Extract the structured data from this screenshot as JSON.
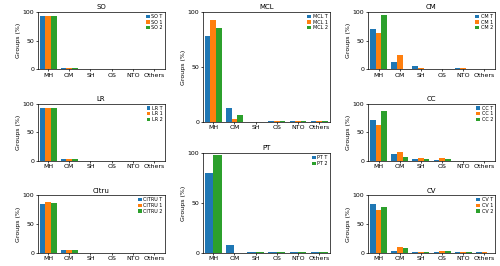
{
  "chart_data": [
    {
      "type": "bar",
      "title": "SO",
      "ylabel": "Groups (%)",
      "categories": [
        "MH",
        "OM",
        "SH",
        "OS",
        "NTO",
        "Others"
      ],
      "series": [
        {
          "name": "SO T",
          "color": "#1f77b4",
          "values": [
            93,
            2,
            0.3,
            0.3,
            0.3,
            0.3
          ]
        },
        {
          "name": "SO 1",
          "color": "#ff7f0e",
          "values": [
            93,
            2,
            0.3,
            0.3,
            0.3,
            0.3
          ]
        },
        {
          "name": "SO 2",
          "color": "#2ca02c",
          "values": [
            93,
            2,
            0.3,
            0.3,
            0.3,
            0.3
          ]
        }
      ],
      "ylim": [
        0,
        100
      ],
      "yticks": [
        0,
        50,
        100
      ],
      "grid": false,
      "legend": "upper right"
    },
    {
      "type": "bar",
      "title": "LR",
      "ylabel": "Groups (%)",
      "categories": [
        "MH",
        "OM",
        "SH",
        "OS",
        "NTO",
        "Others"
      ],
      "series": [
        {
          "name": "LR T",
          "color": "#1f77b4",
          "values": [
            93,
            3,
            0.3,
            0.3,
            0.3,
            0.3
          ]
        },
        {
          "name": "LR 1",
          "color": "#ff7f0e",
          "values": [
            93,
            3,
            0.3,
            0.3,
            0.3,
            0.3
          ]
        },
        {
          "name": "LR 2",
          "color": "#2ca02c",
          "values": [
            93,
            3,
            0.3,
            0.3,
            0.3,
            0.3
          ]
        }
      ],
      "ylim": [
        0,
        100
      ],
      "yticks": [
        0,
        50,
        100
      ],
      "grid": false,
      "legend": "upper right"
    },
    {
      "type": "bar",
      "title": "Citru",
      "ylabel": "Groups (%)",
      "categories": [
        "MH",
        "OM",
        "SH",
        "OS",
        "NTO",
        "Others"
      ],
      "series": [
        {
          "name": "CITRU T",
          "color": "#1f77b4",
          "values": [
            85,
            4,
            0.3,
            0.3,
            0.3,
            0.3
          ]
        },
        {
          "name": "CITRU 1",
          "color": "#ff7f0e",
          "values": [
            88,
            4,
            0.3,
            0.3,
            0.3,
            0.3
          ]
        },
        {
          "name": "CITRU 2",
          "color": "#2ca02c",
          "values": [
            87,
            4,
            0.3,
            0.3,
            0.3,
            0.3
          ]
        }
      ],
      "ylim": [
        0,
        100
      ],
      "yticks": [
        0,
        50,
        100
      ],
      "grid": false,
      "legend": "upper right"
    },
    {
      "type": "bar",
      "title": "MCL",
      "ylabel": "Groups (%)",
      "categories": [
        "MH",
        "OM",
        "SH",
        "OS",
        "NTO",
        "Others"
      ],
      "series": [
        {
          "name": "MCL T",
          "color": "#1f77b4",
          "values": [
            78,
            13,
            0.3,
            1,
            1,
            1
          ]
        },
        {
          "name": "MCL 1",
          "color": "#ff7f0e",
          "values": [
            93,
            3,
            0.3,
            1,
            1,
            1
          ]
        },
        {
          "name": "MCL 2",
          "color": "#2ca02c",
          "values": [
            85,
            6,
            0.3,
            1,
            1,
            1
          ]
        }
      ],
      "ylim": [
        0,
        100
      ],
      "yticks": [
        0,
        50,
        100
      ],
      "grid": false,
      "legend": "upper right"
    },
    {
      "type": "bar",
      "title": "PT",
      "ylabel": "Groups (%)",
      "categories": [
        "MH",
        "OM",
        "SH",
        "OS",
        "NTO",
        "Others"
      ],
      "series": [
        {
          "name": "PT T",
          "color": "#1f77b4",
          "values": [
            80,
            8,
            0.3,
            0.3,
            0.5,
            0.3
          ]
        },
        {
          "name": "PT 2",
          "color": "#2ca02c",
          "values": [
            98,
            0,
            0.3,
            0.3,
            0.3,
            0.3
          ]
        }
      ],
      "ylim": [
        0,
        100
      ],
      "yticks": [
        0,
        50,
        100
      ],
      "grid": false,
      "legend": "upper right"
    },
    {
      "type": "bar",
      "title": "CM",
      "ylabel": "Groups (%)",
      "categories": [
        "MH",
        "OM",
        "SH",
        "OS",
        "NTO",
        "Others"
      ],
      "series": [
        {
          "name": "CM T",
          "color": "#1f77b4",
          "values": [
            70,
            12,
            5,
            1,
            3,
            1
          ]
        },
        {
          "name": "CM 1",
          "color": "#ff7f0e",
          "values": [
            63,
            25,
            2,
            1,
            3,
            1
          ]
        },
        {
          "name": "CM 2",
          "color": "#2ca02c",
          "values": [
            95,
            0,
            1,
            0.5,
            1,
            0.3
          ]
        }
      ],
      "ylim": [
        0,
        100
      ],
      "yticks": [
        0,
        50,
        100
      ],
      "grid": false,
      "legend": "upper right"
    },
    {
      "type": "bar",
      "title": "CC",
      "ylabel": "Groups (%)",
      "categories": [
        "MH",
        "OM",
        "SH",
        "OS",
        "NTO",
        "Others"
      ],
      "series": [
        {
          "name": "CC T",
          "color": "#1f77b4",
          "values": [
            72,
            12,
            3,
            2,
            0.5,
            0.5
          ]
        },
        {
          "name": "CC 1",
          "color": "#ff7f0e",
          "values": [
            62,
            15,
            5,
            5,
            0.5,
            0.3
          ]
        },
        {
          "name": "CC 2",
          "color": "#2ca02c",
          "values": [
            88,
            7,
            3,
            3,
            0.3,
            0.3
          ]
        }
      ],
      "ylim": [
        0,
        100
      ],
      "yticks": [
        0,
        50,
        100
      ],
      "grid": false,
      "legend": "upper right"
    },
    {
      "type": "bar",
      "title": "CV",
      "ylabel": "Groups (%)",
      "categories": [
        "MH",
        "OM",
        "SH",
        "OS",
        "NTO",
        "Others"
      ],
      "series": [
        {
          "name": "CV T",
          "color": "#1f77b4",
          "values": [
            85,
            3,
            0.5,
            1,
            0.5,
            0.5
          ]
        },
        {
          "name": "CV 1",
          "color": "#ff7f0e",
          "values": [
            75,
            10,
            0.5,
            3,
            0.5,
            0.5
          ]
        },
        {
          "name": "CV 2",
          "color": "#2ca02c",
          "values": [
            80,
            8,
            0.5,
            3,
            0.5,
            0.3
          ]
        }
      ],
      "ylim": [
        0,
        100
      ],
      "yticks": [
        0,
        50,
        100
      ],
      "grid": false,
      "legend": "upper right"
    }
  ]
}
